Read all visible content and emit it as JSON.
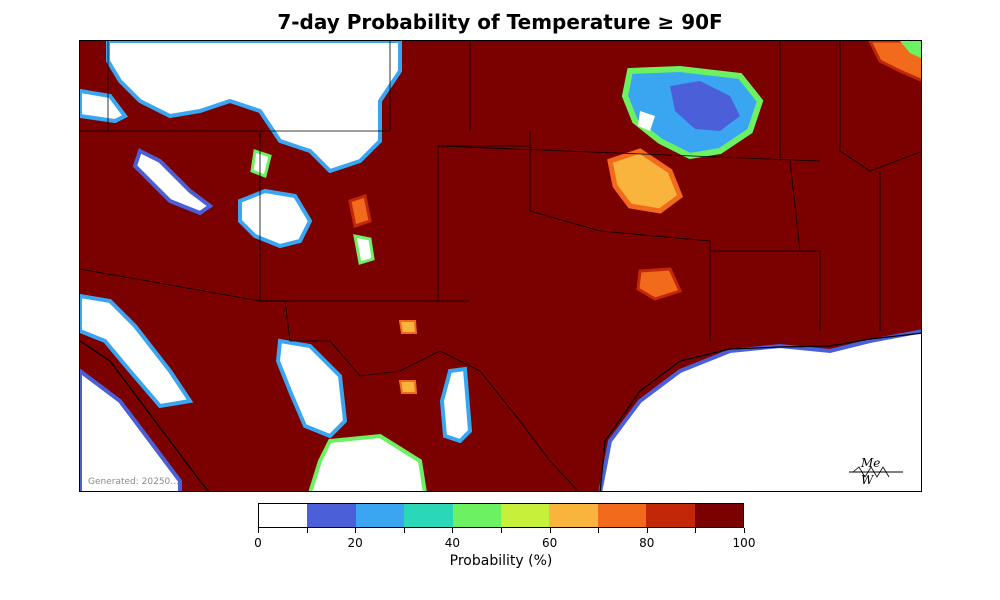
{
  "title": "7-day Probability of Temperature ≥ 90F",
  "generated_text": "Generated: 20250…",
  "logo_icon": "mesowest-logo-icon",
  "colorbar": {
    "label": "Probability (%)",
    "tick_labels": [
      "0",
      "20",
      "40",
      "60",
      "80",
      "100"
    ],
    "colors": [
      "#ffffff",
      "#4a5fd8",
      "#3aa6f2",
      "#2ad8b8",
      "#6cf260",
      "#c6f03a",
      "#f8b43c",
      "#f26a1c",
      "#c22808",
      "#7b0000"
    ]
  },
  "map_colors": {
    "max": "#7b0000",
    "zero": "#ffffff",
    "blue": "#4a5fd8",
    "cyan": "#3aa6f2",
    "green": "#6cf260",
    "orange": "#f26a1c"
  }
}
